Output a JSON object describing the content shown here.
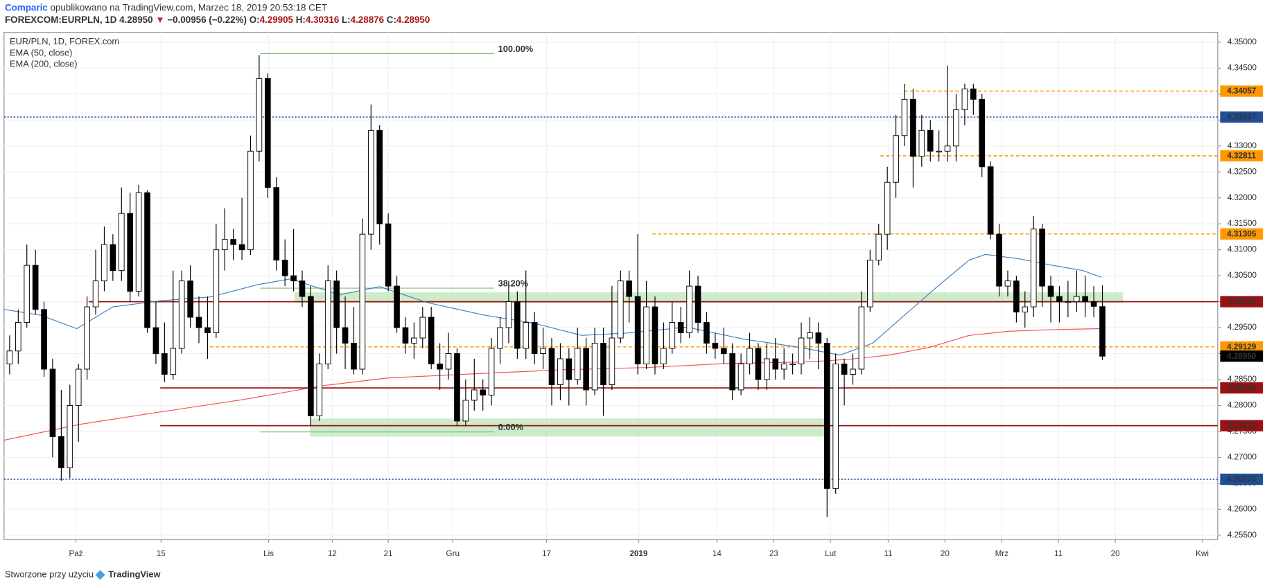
{
  "header": {
    "author": "Comparic",
    "published": " opublikowano na TradingView.com, Marzec 18, 2019 20:53:18 CET",
    "symbol": "FOREXCOM:EURPLN, 1D",
    "last": "4.28950",
    "arrow": "▼",
    "change": "−0.00956 (−0.22%)",
    "ohlc": [
      {
        "label": "O:",
        "value": "4.29905"
      },
      {
        "label": "H:",
        "value": "4.30316"
      },
      {
        "label": "L:",
        "value": "4.28876"
      },
      {
        "label": "C:",
        "value": "4.28950"
      }
    ]
  },
  "legend": [
    "EUR/PLN, 1D, FOREX.com",
    "EMA (50, close)",
    "EMA (200, close)"
  ],
  "footer": {
    "text": "Stworzone przy użyciu",
    "brand": "TradingView"
  },
  "chart_data": {
    "type": "candlestick",
    "up_color": "#ffffff",
    "down_color": "#000000",
    "grid": true,
    "xlim": [
      -0.65,
      140.4
    ],
    "ylim": [
      4.2542,
      4.3519
    ],
    "xticks": [
      {
        "value": 7.7,
        "label": "Paź"
      },
      {
        "value": 17.6,
        "label": "15"
      },
      {
        "value": 30.1,
        "label": "Lis"
      },
      {
        "value": 37.5,
        "label": "12"
      },
      {
        "value": 44.0,
        "label": "21"
      },
      {
        "value": 51.5,
        "label": "Gru"
      },
      {
        "value": 62.4,
        "label": "17"
      },
      {
        "value": 73.1,
        "label": "2019"
      },
      {
        "value": 82.2,
        "label": "14"
      },
      {
        "value": 88.8,
        "label": "23"
      },
      {
        "value": 95.4,
        "label": "Lut"
      },
      {
        "value": 102.1,
        "label": "11"
      },
      {
        "value": 108.7,
        "label": "20"
      },
      {
        "value": 115.3,
        "label": "Mrz"
      },
      {
        "value": 121.9,
        "label": "11"
      },
      {
        "value": 128.5,
        "label": "20"
      },
      {
        "value": 138.6,
        "label": "Kwi"
      }
    ],
    "yticks": [
      {
        "value": 4.255,
        "label": "4.25500"
      },
      {
        "value": 4.26,
        "label": "4.26000"
      },
      {
        "value": 4.265,
        "label": "4.26500"
      },
      {
        "value": 4.27,
        "label": "4.27000"
      },
      {
        "value": 4.275,
        "label": "4.27500"
      },
      {
        "value": 4.28,
        "label": "4.28000"
      },
      {
        "value": 4.285,
        "label": "4.28500"
      },
      {
        "value": 4.29,
        "label": "4.29000"
      },
      {
        "value": 4.295,
        "label": "4.29500"
      },
      {
        "value": 4.3,
        "label": "4.30000"
      },
      {
        "value": 4.305,
        "label": "4.30500"
      },
      {
        "value": 4.31,
        "label": "4.31000"
      },
      {
        "value": 4.315,
        "label": "4.31500"
      },
      {
        "value": 4.32,
        "label": "4.32000"
      },
      {
        "value": 4.325,
        "label": "4.32500"
      },
      {
        "value": 4.33,
        "label": "4.33000"
      },
      {
        "value": 4.335,
        "label": "4.33500"
      },
      {
        "value": 4.34,
        "label": "4.34000"
      },
      {
        "value": 4.345,
        "label": "4.34500"
      },
      {
        "value": 4.35,
        "label": "4.35000"
      }
    ],
    "candles": [
      [
        4.288,
        4.2935,
        4.286,
        4.2905
      ],
      [
        4.2905,
        4.2985,
        4.288,
        4.296
      ],
      [
        4.296,
        4.311,
        4.295,
        4.307
      ],
      [
        4.307,
        4.31,
        4.2975,
        4.2985
      ],
      [
        4.2985,
        4.3,
        4.2855,
        4.287
      ],
      [
        4.287,
        4.289,
        4.27,
        4.274
      ],
      [
        4.274,
        4.283,
        4.2655,
        4.268
      ],
      [
        4.268,
        4.284,
        4.266,
        4.28
      ],
      [
        4.28,
        4.288,
        4.273,
        4.287
      ],
      [
        4.287,
        4.301,
        4.285,
        4.299
      ],
      [
        4.299,
        4.31,
        4.2975,
        4.304
      ],
      [
        4.304,
        4.3145,
        4.302,
        4.311
      ],
      [
        4.311,
        4.313,
        4.304,
        4.306
      ],
      [
        4.306,
        4.322,
        4.304,
        4.317
      ],
      [
        4.317,
        4.321,
        4.3,
        4.302
      ],
      [
        4.302,
        4.3225,
        4.301,
        4.321
      ],
      [
        4.321,
        4.3215,
        4.294,
        4.295
      ],
      [
        4.295,
        4.3,
        4.288,
        4.29
      ],
      [
        4.29,
        4.296,
        4.2845,
        4.286
      ],
      [
        4.286,
        4.306,
        4.285,
        4.291
      ],
      [
        4.291,
        4.306,
        4.29,
        4.304
      ],
      [
        4.304,
        4.307,
        4.295,
        4.297
      ],
      [
        4.297,
        4.301,
        4.292,
        4.295
      ],
      [
        4.295,
        4.301,
        4.289,
        4.294
      ],
      [
        4.294,
        4.315,
        4.293,
        4.31
      ],
      [
        4.31,
        4.318,
        4.306,
        4.312
      ],
      [
        4.312,
        4.314,
        4.308,
        4.311
      ],
      [
        4.311,
        4.32,
        4.308,
        4.31
      ],
      [
        4.31,
        4.332,
        4.309,
        4.329
      ],
      [
        4.329,
        4.3475,
        4.327,
        4.343
      ],
      [
        4.343,
        4.344,
        4.32,
        4.322
      ],
      [
        4.322,
        4.324,
        4.306,
        4.308
      ],
      [
        4.308,
        4.312,
        4.303,
        4.305
      ],
      [
        4.305,
        4.314,
        4.302,
        4.304
      ],
      [
        4.304,
        4.306,
        4.299,
        4.301
      ],
      [
        4.301,
        4.303,
        4.276,
        4.278
      ],
      [
        4.278,
        4.29,
        4.277,
        4.288
      ],
      [
        4.288,
        4.307,
        4.287,
        4.304
      ],
      [
        4.304,
        4.306,
        4.29,
        4.295
      ],
      [
        4.295,
        4.301,
        4.287,
        4.292
      ],
      [
        4.292,
        4.299,
        4.286,
        4.287
      ],
      [
        4.287,
        4.316,
        4.286,
        4.313
      ],
      [
        4.313,
        4.338,
        4.31,
        4.333
      ],
      [
        4.333,
        4.334,
        4.311,
        4.315
      ],
      [
        4.315,
        4.317,
        4.302,
        4.303
      ],
      [
        4.303,
        4.305,
        4.294,
        4.295
      ],
      [
        4.295,
        4.297,
        4.29,
        4.292
      ],
      [
        4.292,
        4.296,
        4.289,
        4.293
      ],
      [
        4.293,
        4.299,
        4.291,
        4.297
      ],
      [
        4.297,
        4.299,
        4.287,
        4.288
      ],
      [
        4.288,
        4.292,
        4.283,
        4.287
      ],
      [
        4.287,
        4.294,
        4.285,
        4.29
      ],
      [
        4.29,
        4.291,
        4.276,
        4.277
      ],
      [
        4.277,
        4.285,
        4.276,
        4.281
      ],
      [
        4.281,
        4.289,
        4.279,
        4.283
      ],
      [
        4.283,
        4.285,
        4.279,
        4.282
      ],
      [
        4.282,
        4.293,
        4.28,
        4.291
      ],
      [
        4.291,
        4.297,
        4.288,
        4.295
      ],
      [
        4.295,
        4.304,
        4.292,
        4.3
      ],
      [
        4.3,
        4.302,
        4.289,
        4.291
      ],
      [
        4.291,
        4.306,
        4.289,
        4.296
      ],
      [
        4.296,
        4.298,
        4.288,
        4.29
      ],
      [
        4.29,
        4.295,
        4.287,
        4.291
      ],
      [
        4.291,
        4.293,
        4.28,
        4.284
      ],
      [
        4.284,
        4.292,
        4.281,
        4.289
      ],
      [
        4.289,
        4.291,
        4.28,
        4.285
      ],
      [
        4.285,
        4.295,
        4.284,
        4.291
      ],
      [
        4.291,
        4.293,
        4.28,
        4.283
      ],
      [
        4.283,
        4.295,
        4.282,
        4.292
      ],
      [
        4.292,
        4.295,
        4.278,
        4.284
      ],
      [
        4.284,
        4.303,
        4.283,
        4.293
      ],
      [
        4.293,
        4.306,
        4.292,
        4.304
      ],
      [
        4.304,
        4.306,
        4.296,
        4.301
      ],
      [
        4.301,
        4.313,
        4.286,
        4.288
      ],
      [
        4.288,
        4.304,
        4.287,
        4.299
      ],
      [
        4.299,
        4.301,
        4.286,
        4.288
      ],
      [
        4.288,
        4.296,
        4.287,
        4.291
      ],
      [
        4.291,
        4.3,
        4.29,
        4.296
      ],
      [
        4.296,
        4.299,
        4.292,
        4.294
      ],
      [
        4.294,
        4.306,
        4.293,
        4.303
      ],
      [
        4.303,
        4.305,
        4.294,
        4.296
      ],
      [
        4.296,
        4.298,
        4.29,
        4.292
      ],
      [
        4.292,
        4.294,
        4.289,
        4.291
      ],
      [
        4.291,
        4.295,
        4.288,
        4.29
      ],
      [
        4.29,
        4.292,
        4.281,
        4.283
      ],
      [
        4.283,
        4.29,
        4.282,
        4.288
      ],
      [
        4.288,
        4.294,
        4.286,
        4.291
      ],
      [
        4.291,
        4.292,
        4.283,
        4.285
      ],
      [
        4.285,
        4.292,
        4.283,
        4.289
      ],
      [
        4.289,
        4.293,
        4.285,
        4.287
      ],
      [
        4.287,
        4.291,
        4.285,
        4.288
      ],
      [
        4.288,
        4.29,
        4.286,
        4.288
      ],
      [
        4.288,
        4.296,
        4.286,
        4.293
      ],
      [
        4.293,
        4.297,
        4.289,
        4.294
      ],
      [
        4.294,
        4.296,
        4.287,
        4.292
      ],
      [
        4.292,
        4.293,
        4.2585,
        4.264
      ],
      [
        4.264,
        4.29,
        4.263,
        4.288
      ],
      [
        4.288,
        4.289,
        4.28,
        4.286
      ],
      [
        4.286,
        4.29,
        4.284,
        4.287
      ],
      [
        4.287,
        4.302,
        4.286,
        4.299
      ],
      [
        4.299,
        4.31,
        4.298,
        4.308
      ],
      [
        4.308,
        4.315,
        4.307,
        4.313
      ],
      [
        4.313,
        4.326,
        4.31,
        4.323
      ],
      [
        4.323,
        4.336,
        4.32,
        4.332
      ],
      [
        4.332,
        4.342,
        4.33,
        4.339
      ],
      [
        4.339,
        4.341,
        4.322,
        4.328
      ],
      [
        4.328,
        4.336,
        4.326,
        4.333
      ],
      [
        4.333,
        4.335,
        4.327,
        4.329
      ],
      [
        4.329,
        4.333,
        4.327,
        4.329
      ],
      [
        4.329,
        4.3455,
        4.327,
        4.33
      ],
      [
        4.33,
        4.34,
        4.327,
        4.337
      ],
      [
        4.337,
        4.342,
        4.334,
        4.341
      ],
      [
        4.341,
        4.342,
        4.336,
        4.339
      ],
      [
        4.339,
        4.34,
        4.324,
        4.326
      ],
      [
        4.326,
        4.327,
        4.312,
        4.313
      ],
      [
        4.313,
        4.315,
        4.301,
        4.303
      ],
      [
        4.303,
        4.306,
        4.301,
        4.304
      ],
      [
        4.304,
        4.305,
        4.296,
        4.298
      ],
      [
        4.298,
        4.302,
        4.295,
        4.299
      ],
      [
        4.299,
        4.3165,
        4.297,
        4.314
      ],
      [
        4.314,
        4.315,
        4.299,
        4.303
      ],
      [
        4.303,
        4.305,
        4.296,
        4.301
      ],
      [
        4.301,
        4.303,
        4.296,
        4.3
      ],
      [
        4.3,
        4.304,
        4.297,
        4.3
      ],
      [
        4.3,
        4.306,
        4.298,
        4.301
      ],
      [
        4.301,
        4.305,
        4.297,
        4.3
      ],
      [
        4.3,
        4.303,
        4.297,
        4.2991
      ],
      [
        4.29905,
        4.30316,
        4.28876,
        4.2895
      ]
    ],
    "series": [
      {
        "name": "EMA (50, close)",
        "color": "#3d7fc1",
        "x": [
          -0.65,
          3.6,
          7.8,
          12.0,
          17.7,
          23.3,
          28.9,
          32.7,
          38.3,
          43.0,
          48.6,
          55.2,
          60.8,
          66.5,
          72.1,
          78.7,
          85.3,
          91.8,
          96.5,
          100.3,
          104.0,
          107.8,
          111.5,
          113.4,
          117.2,
          120.9,
          124.7,
          126.9
        ],
        "values": [
          4.2985,
          4.2974,
          4.2948,
          4.299,
          4.3002,
          4.3009,
          4.3033,
          4.3044,
          4.3013,
          4.3029,
          4.2998,
          4.2974,
          4.2959,
          4.2935,
          4.294,
          4.2951,
          4.2928,
          4.2912,
          4.2897,
          4.292,
          4.2974,
          4.3029,
          4.308,
          4.3091,
          4.3083,
          4.3071,
          4.306,
          4.3047
        ]
      },
      {
        "name": "EMA (200, close)",
        "color": "#ef5350",
        "x": [
          -0.65,
          8.3,
          17.7,
          27.0,
          36.4,
          43.9,
          55.2,
          64.6,
          74.0,
          83.4,
          92.8,
          97.5,
          102.2,
          106.9,
          111.5,
          116.2,
          120.9,
          126.9
        ],
        "values": [
          4.2733,
          4.2764,
          4.2788,
          4.2811,
          4.2838,
          4.2853,
          4.2862,
          4.2869,
          4.2873,
          4.2881,
          4.2884,
          4.2889,
          4.2897,
          4.2912,
          4.2935,
          4.2943,
          4.2946,
          4.2948
        ]
      }
    ],
    "zones": [
      {
        "from": 33.1,
        "to": 129.4,
        "low": 4.2998,
        "high": 4.3018,
        "color": "#a5dca0"
      },
      {
        "from": 34.9,
        "to": 95.1,
        "low": 4.274,
        "high": 4.2775,
        "color": "#a5dca0"
      }
    ],
    "fib": {
      "from": 29.1,
      "to": 56.3,
      "color": "#7cbd6f",
      "levels": [
        {
          "value": 4.3478,
          "label": "100.00%"
        },
        {
          "value": 4.3026,
          "label": "38.20%"
        },
        {
          "value": 4.2749,
          "label": "0.00%"
        }
      ]
    },
    "levels": [
      {
        "value": 4.34057,
        "label": "4.34057",
        "color": "#ff9800",
        "style": "dashed",
        "from": 104.0
      },
      {
        "value": 4.33557,
        "label": "4.33557",
        "color": "#1f4e96",
        "style": "dotted"
      },
      {
        "value": 4.32811,
        "label": "4.32811",
        "color": "#ff9800",
        "style": "dashed",
        "from": 101.2
      },
      {
        "value": 4.31305,
        "label": "4.31305",
        "color": "#ff9800",
        "style": "dashed",
        "from": 74.7
      },
      {
        "value": 4.3,
        "label": "4.30000",
        "color": "#9b1111",
        "style": "solid",
        "from": 9.2
      },
      {
        "value": 4.29129,
        "label": "4.29129",
        "color": "#ff9800",
        "style": "dashed",
        "from": 23.3
      },
      {
        "value": 4.28338,
        "label": "4.28338",
        "color": "#9b1111",
        "style": "solid",
        "from": 17.5
      },
      {
        "value": 4.27611,
        "label": "4.27611",
        "color": "#9b1111",
        "style": "solid",
        "from": 17.5
      },
      {
        "value": 4.26578,
        "label": "4.26578",
        "color": "#1f4e96",
        "style": "dotted"
      }
    ],
    "last_price": {
      "value": 4.2895,
      "label": "4.28950",
      "color": "#000000"
    }
  }
}
